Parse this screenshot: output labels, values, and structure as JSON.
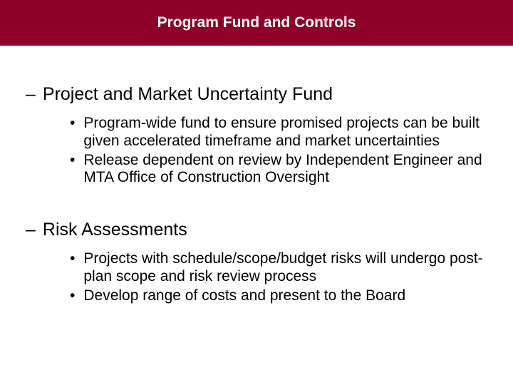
{
  "colors": {
    "title_bg": "#8f0129",
    "title_text": "#ffffff",
    "body_text": "#000000",
    "background": "#ffffff"
  },
  "typography": {
    "title_fontsize": 21,
    "title_weight": "bold",
    "heading_fontsize": 25,
    "heading_weight": "normal",
    "bullet_fontsize": 21,
    "bullet_weight": "normal",
    "font_family": "Arial"
  },
  "title": "Program Fund and Controls",
  "sections": [
    {
      "heading": "Project and Market Uncertainty Fund",
      "bullets": [
        "Program-wide fund to ensure promised projects can be built given accelerated timeframe and market uncertainties",
        "Release dependent on review by Independent Engineer and MTA Office of Construction Oversight"
      ]
    },
    {
      "heading": "Risk Assessments",
      "bullets": [
        "Projects with schedule/scope/budget risks will undergo post-plan scope and risk review process",
        "Develop range of costs and present to the Board"
      ]
    }
  ]
}
